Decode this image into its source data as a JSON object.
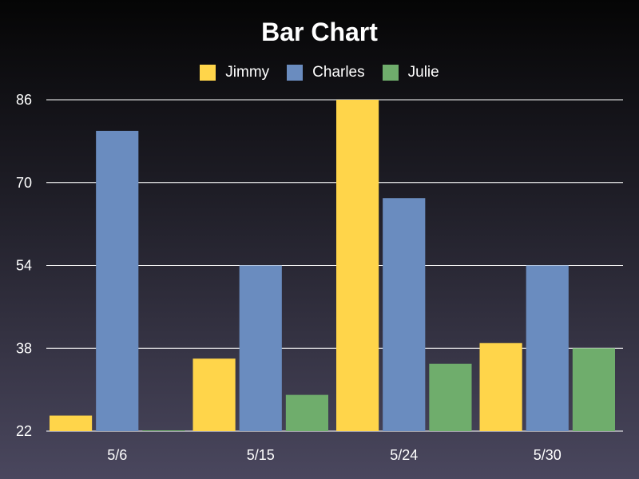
{
  "chart_data": {
    "type": "bar",
    "title": "Bar Chart",
    "xlabel": "",
    "ylabel": "",
    "categories": [
      "5/6",
      "5/15",
      "5/24",
      "5/30"
    ],
    "ylim": [
      22,
      86
    ],
    "yticks": [
      22,
      38,
      54,
      70,
      86
    ],
    "grid": true,
    "legend_position": "top-center",
    "series": [
      {
        "name": "Jimmy",
        "color": "#ffd54a",
        "values": [
          25,
          36,
          86,
          39
        ]
      },
      {
        "name": "Charles",
        "color": "#6a8cbf",
        "values": [
          80,
          54,
          67,
          54
        ]
      },
      {
        "name": "Julie",
        "color": "#6fad6c",
        "values": [
          22,
          29,
          35,
          38
        ]
      }
    ]
  }
}
